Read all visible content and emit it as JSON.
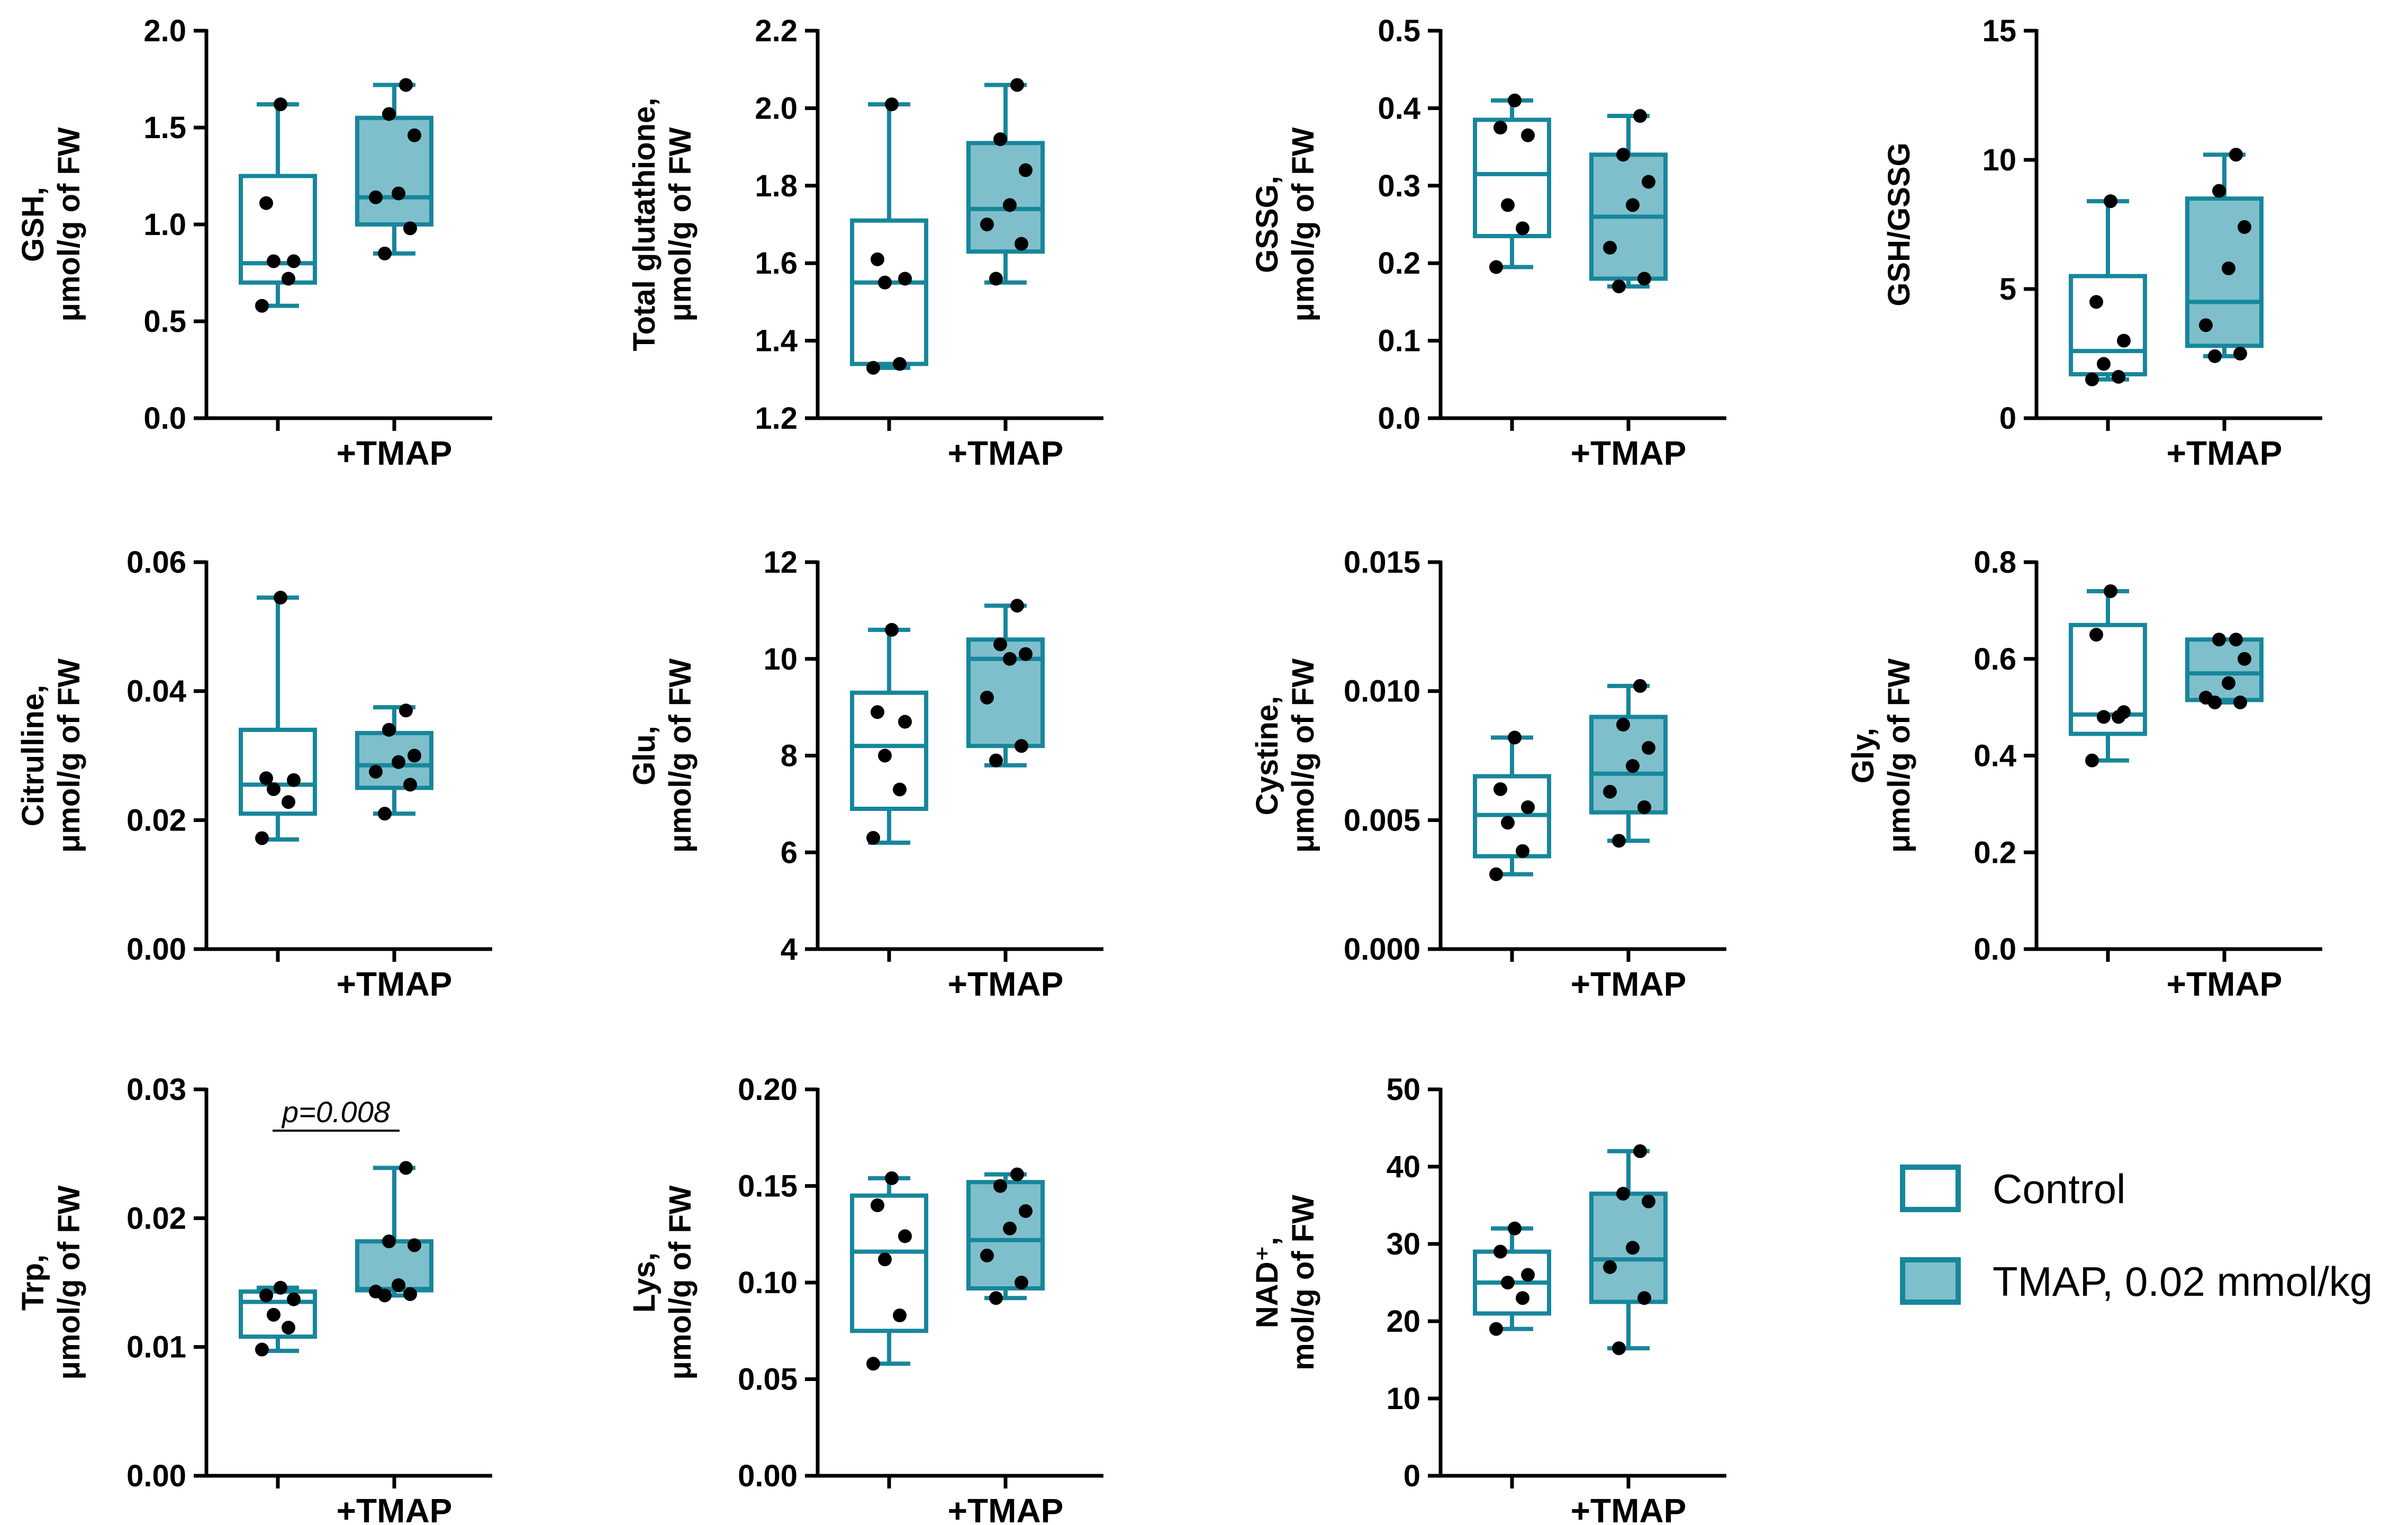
{
  "colors": {
    "control": "#ffffff",
    "tmap": "#7fbfcc",
    "stroke": "#17869b",
    "dot": "#000000"
  },
  "legend": {
    "items": [
      {
        "label": "Control",
        "fill": "#ffffff"
      },
      {
        "label": "TMAP, 0.02 mmol/kg",
        "fill": "#7fbfcc"
      }
    ]
  },
  "chart_data": [
    {
      "type": "box",
      "ylabel": [
        "GSH,",
        "μmol/g of FW"
      ],
      "ylim": [
        0,
        2.0
      ],
      "ticks": [
        "0.0",
        "0.5",
        "1.0",
        "1.5",
        "2.0"
      ],
      "group_labels": [
        "",
        "+TMAP"
      ],
      "series": [
        {
          "name": "Control",
          "min": 0.58,
          "q1": 0.7,
          "median": 0.8,
          "q3": 1.25,
          "max": 1.62,
          "points": [
            0.58,
            0.72,
            0.81,
            0.81,
            1.11,
            1.62
          ]
        },
        {
          "name": "TMAP, 0.02 mmol/kg",
          "min": 0.85,
          "q1": 1.0,
          "median": 1.14,
          "q3": 1.55,
          "max": 1.72,
          "points": [
            0.85,
            0.98,
            1.14,
            1.16,
            1.46,
            1.57,
            1.72
          ]
        }
      ]
    },
    {
      "type": "box",
      "ylabel": [
        "Total glutathione,",
        "μmol/g of FW"
      ],
      "ylim": [
        1.2,
        2.2
      ],
      "ticks": [
        "1.2",
        "1.4",
        "1.6",
        "1.8",
        "2.0",
        "2.2"
      ],
      "group_labels": [
        "",
        "+TMAP"
      ],
      "series": [
        {
          "name": "Control",
          "min": 1.33,
          "q1": 1.34,
          "median": 1.55,
          "q3": 1.71,
          "max": 2.01,
          "points": [
            1.33,
            1.34,
            1.55,
            1.56,
            1.61,
            2.01
          ]
        },
        {
          "name": "TMAP, 0.02 mmol/kg",
          "min": 1.55,
          "q1": 1.63,
          "median": 1.74,
          "q3": 1.91,
          "max": 2.06,
          "points": [
            1.56,
            1.65,
            1.7,
            1.75,
            1.84,
            1.92,
            2.06
          ]
        }
      ]
    },
    {
      "type": "box",
      "ylabel": [
        "GSSG,",
        "μmol/g of FW"
      ],
      "ylim": [
        0,
        0.5
      ],
      "ticks": [
        "0.0",
        "0.1",
        "0.2",
        "0.3",
        "0.4",
        "0.5"
      ],
      "group_labels": [
        "",
        "+TMAP"
      ],
      "series": [
        {
          "name": "Control",
          "min": 0.195,
          "q1": 0.235,
          "median": 0.315,
          "q3": 0.385,
          "max": 0.41,
          "points": [
            0.195,
            0.245,
            0.275,
            0.365,
            0.375,
            0.41
          ]
        },
        {
          "name": "TMAP, 0.02 mmol/kg",
          "min": 0.17,
          "q1": 0.18,
          "median": 0.26,
          "q3": 0.34,
          "max": 0.39,
          "points": [
            0.17,
            0.18,
            0.22,
            0.275,
            0.305,
            0.34,
            0.39
          ]
        }
      ]
    },
    {
      "type": "box",
      "ylabel": [
        "GSH/GSSG"
      ],
      "ylim": [
        0,
        15
      ],
      "ticks": [
        "0",
        "5",
        "10",
        "15"
      ],
      "group_labels": [
        "",
        "+TMAP"
      ],
      "series": [
        {
          "name": "Control",
          "min": 1.5,
          "q1": 1.7,
          "median": 2.6,
          "q3": 5.5,
          "max": 8.4,
          "points": [
            1.5,
            1.6,
            2.1,
            3.0,
            4.5,
            8.4
          ]
        },
        {
          "name": "TMAP, 0.02 mmol/kg",
          "min": 2.4,
          "q1": 2.8,
          "median": 4.5,
          "q3": 8.5,
          "max": 10.2,
          "points": [
            2.4,
            2.5,
            3.6,
            5.8,
            7.4,
            8.8,
            10.2
          ]
        }
      ]
    },
    {
      "type": "box",
      "ylabel": [
        "Citrulline,",
        "μmol/g of FW"
      ],
      "ylim": [
        0,
        0.06
      ],
      "ticks": [
        "0.00",
        "0.02",
        "0.04",
        "0.06"
      ],
      "group_labels": [
        "",
        "+TMAP"
      ],
      "series": [
        {
          "name": "Control",
          "min": 0.017,
          "q1": 0.021,
          "median": 0.0255,
          "q3": 0.034,
          "max": 0.0545,
          "points": [
            0.0172,
            0.0228,
            0.0248,
            0.0262,
            0.0265,
            0.0545
          ]
        },
        {
          "name": "TMAP, 0.02 mmol/kg",
          "min": 0.021,
          "q1": 0.025,
          "median": 0.0285,
          "q3": 0.0335,
          "max": 0.0375,
          "points": [
            0.021,
            0.0255,
            0.0275,
            0.029,
            0.03,
            0.034,
            0.037
          ]
        }
      ]
    },
    {
      "type": "box",
      "ylabel": [
        "Glu,",
        "μmol/g of FW"
      ],
      "ylim": [
        4,
        12
      ],
      "ticks": [
        "4",
        "6",
        "8",
        "10",
        "12"
      ],
      "group_labels": [
        "",
        "+TMAP"
      ],
      "series": [
        {
          "name": "Control",
          "min": 6.2,
          "q1": 6.9,
          "median": 8.2,
          "q3": 9.3,
          "max": 10.6,
          "points": [
            6.3,
            7.3,
            8.0,
            8.7,
            8.9,
            10.6
          ]
        },
        {
          "name": "TMAP, 0.02 mmol/kg",
          "min": 7.8,
          "q1": 8.2,
          "median": 10.0,
          "q3": 10.4,
          "max": 11.1,
          "points": [
            7.9,
            8.2,
            9.2,
            10.0,
            10.1,
            10.3,
            11.1
          ]
        }
      ]
    },
    {
      "type": "box",
      "ylabel": [
        "Cystine,",
        "μmol/g of FW"
      ],
      "ylim": [
        0,
        0.015
      ],
      "ticks": [
        "0.000",
        "0.005",
        "0.010",
        "0.015"
      ],
      "group_labels": [
        "",
        "+TMAP"
      ],
      "series": [
        {
          "name": "Control",
          "min": 0.0029,
          "q1": 0.0036,
          "median": 0.0052,
          "q3": 0.0067,
          "max": 0.0082,
          "points": [
            0.0029,
            0.0038,
            0.0049,
            0.0055,
            0.0062,
            0.0082
          ]
        },
        {
          "name": "TMAP, 0.02 mmol/kg",
          "min": 0.0042,
          "q1": 0.0053,
          "median": 0.0068,
          "q3": 0.009,
          "max": 0.0102,
          "points": [
            0.0042,
            0.0055,
            0.0061,
            0.0071,
            0.0078,
            0.0087,
            0.0102
          ]
        }
      ]
    },
    {
      "type": "box",
      "ylabel": [
        "Gly,",
        "μmol/g of FW"
      ],
      "ylim": [
        0,
        0.8
      ],
      "ticks": [
        "0.0",
        "0.2",
        "0.4",
        "0.6",
        "0.8"
      ],
      "group_labels": [
        "",
        "+TMAP"
      ],
      "series": [
        {
          "name": "Control",
          "min": 0.39,
          "q1": 0.445,
          "median": 0.485,
          "q3": 0.67,
          "max": 0.74,
          "points": [
            0.39,
            0.48,
            0.48,
            0.49,
            0.65,
            0.74
          ]
        },
        {
          "name": "TMAP, 0.02 mmol/kg",
          "min": 0.51,
          "q1": 0.515,
          "median": 0.57,
          "q3": 0.64,
          "max": 0.64,
          "points": [
            0.51,
            0.51,
            0.52,
            0.55,
            0.6,
            0.64,
            0.64
          ]
        }
      ]
    },
    {
      "type": "box",
      "ylabel": [
        "Trp,",
        "μmol/g of FW"
      ],
      "ylim": [
        0,
        0.03
      ],
      "ticks": [
        "0.00",
        "0.01",
        "0.02",
        "0.03"
      ],
      "group_labels": [
        "",
        "+TMAP"
      ],
      "annotation": "p=0.008",
      "series": [
        {
          "name": "Control",
          "min": 0.0097,
          "q1": 0.0108,
          "median": 0.0135,
          "q3": 0.0143,
          "max": 0.0146,
          "points": [
            0.0098,
            0.0115,
            0.0125,
            0.0137,
            0.014,
            0.0146
          ]
        },
        {
          "name": "TMAP, 0.02 mmol/kg",
          "min": 0.014,
          "q1": 0.0144,
          "median": 0.0145,
          "q3": 0.0182,
          "max": 0.0239,
          "points": [
            0.014,
            0.0141,
            0.0143,
            0.0148,
            0.0179,
            0.0182,
            0.0239
          ]
        }
      ]
    },
    {
      "type": "box",
      "ylabel": [
        "Lys,",
        "μmol/g of FW"
      ],
      "ylim": [
        0,
        0.2
      ],
      "ticks": [
        "0.00",
        "0.05",
        "0.10",
        "0.15",
        "0.20"
      ],
      "group_labels": [
        "",
        "+TMAP"
      ],
      "series": [
        {
          "name": "Control",
          "min": 0.058,
          "q1": 0.075,
          "median": 0.116,
          "q3": 0.145,
          "max": 0.154,
          "points": [
            0.058,
            0.083,
            0.112,
            0.124,
            0.14,
            0.154
          ]
        },
        {
          "name": "TMAP, 0.02 mmol/kg",
          "min": 0.092,
          "q1": 0.097,
          "median": 0.122,
          "q3": 0.152,
          "max": 0.156,
          "points": [
            0.092,
            0.1,
            0.114,
            0.128,
            0.137,
            0.15,
            0.156
          ]
        }
      ]
    },
    {
      "type": "box",
      "ylabel": [
        "NAD⁺,",
        "mol/g of FW"
      ],
      "ylim": [
        0,
        50
      ],
      "ticks": [
        "0",
        "10",
        "20",
        "30",
        "40",
        "50"
      ],
      "group_labels": [
        "",
        "+TMAP"
      ],
      "series": [
        {
          "name": "Control",
          "min": 19,
          "q1": 21,
          "median": 25,
          "q3": 29,
          "max": 32,
          "points": [
            19,
            23,
            25,
            26,
            29,
            32
          ]
        },
        {
          "name": "TMAP, 0.02 mmol/kg",
          "min": 16.5,
          "q1": 22.5,
          "median": 28,
          "q3": 36.5,
          "max": 42,
          "points": [
            16.5,
            23,
            27,
            29.5,
            35.5,
            36.5,
            42
          ]
        }
      ]
    }
  ]
}
